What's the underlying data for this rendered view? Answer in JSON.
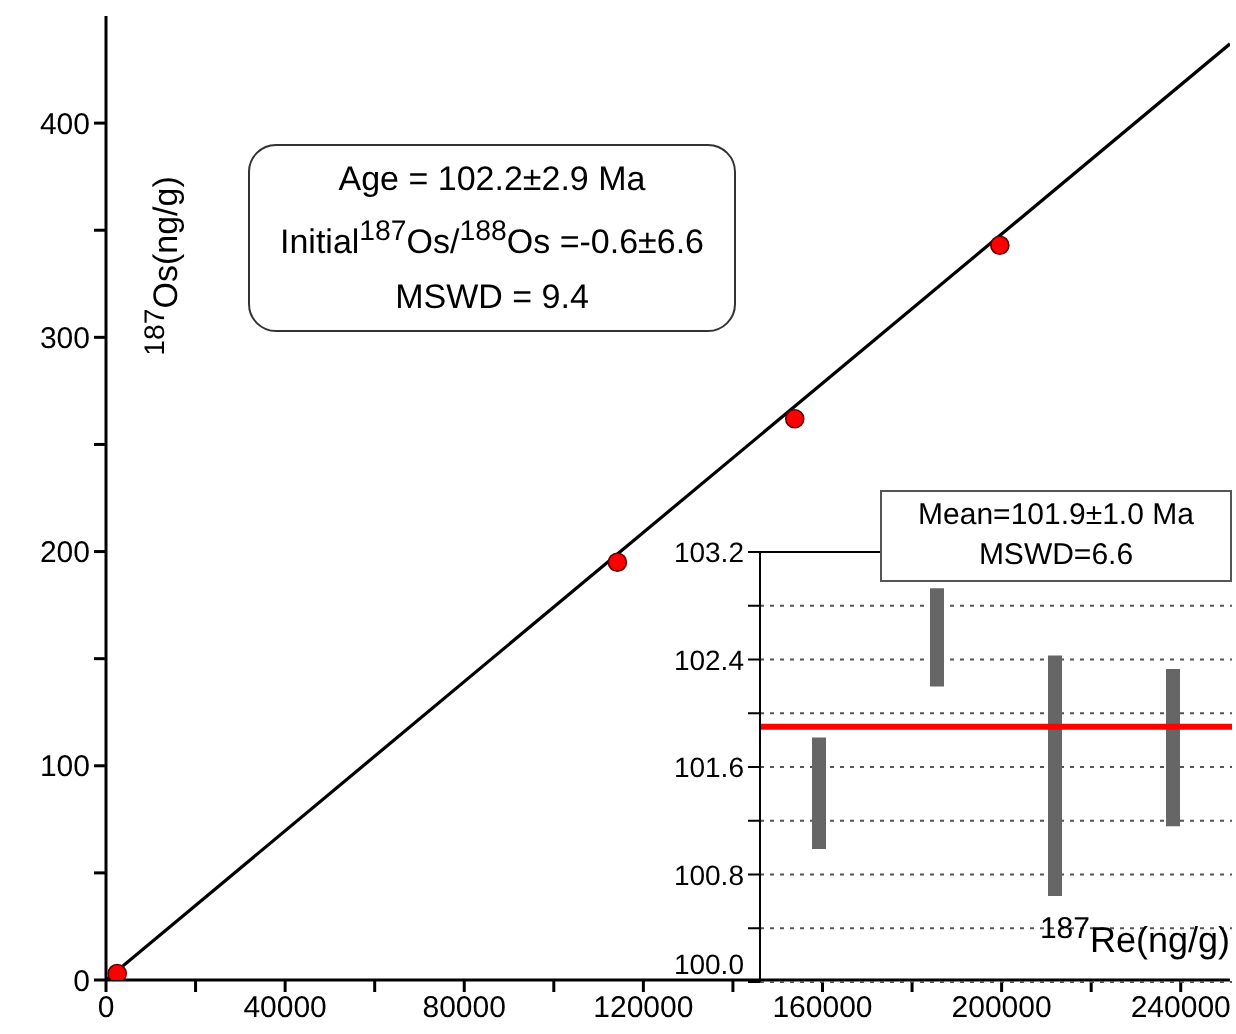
{
  "chart_data": [
    {
      "type": "scatter",
      "xlabel": "$^{187}$Re(ng/g)",
      "ylabel": "$^{187}$Os(ng/g)",
      "annotations": [
        "Age = 102.2±2.9 Ma",
        "Initial$^{187}$Os/$^{188}$Os =-0.6±6.6",
        "MSWD = 9.4"
      ],
      "xlim": [
        0,
        251000
      ],
      "ylim": [
        0,
        450
      ],
      "xticks": [
        0,
        {
          "value": 20000,
          "label": null
        },
        40000,
        {
          "value": 60000,
          "label": null
        },
        80000,
        {
          "value": 100000,
          "label": null
        },
        120000,
        {
          "value": 140000,
          "label": null
        },
        160000,
        {
          "value": 180000,
          "label": null
        },
        200000,
        {
          "value": 220000,
          "label": null
        },
        240000
      ],
      "yticks": [
        0,
        {
          "value": 50,
          "label": null
        },
        100,
        {
          "value": 150,
          "label": null
        },
        200,
        {
          "value": 250,
          "label": null
        },
        300,
        {
          "value": 350,
          "label": null
        },
        400
      ],
      "marker": "circle",
      "series": [
        {
          "color": "#ff0000",
          "x": [
            2500,
            114200,
            153800,
            199600
          ],
          "values": [
            3,
            195,
            262,
            343
          ]
        },
        {
          "type": "line",
          "marker": "none",
          "color": "#000000",
          "x": [
            0,
            251000
          ],
          "values": [
            0,
            437
          ]
        }
      ]
    },
    {
      "type": "bar",
      "categories": [
        null,
        null,
        null,
        null
      ],
      "values": [
        0.83,
        0.73,
        1.79,
        1.17
      ],
      "base": [
        100.99,
        102.2,
        100.64,
        101.16
      ],
      "color": "#666666",
      "ylim": [
        100,
        103.2
      ],
      "yticks": [
        {
          "value": 100,
          "label": "100.0"
        },
        {
          "value": 100.4,
          "label": null
        },
        {
          "value": 100.8,
          "label": "100.8"
        },
        {
          "value": 101.2,
          "label": null
        },
        {
          "value": 101.6,
          "label": "101.6"
        },
        {
          "value": 102,
          "label": null
        },
        {
          "value": 102.4,
          "label": "102.4"
        },
        {
          "value": 102.8,
          "label": null
        },
        {
          "value": 103.2,
          "label": "103.2"
        }
      ],
      "grid": "y",
      "tick_labels": "y",
      "ref_lines": [
        {
          "axis": "y",
          "value": 101.9,
          "color": "#ff0000"
        }
      ],
      "annotations": [
        "Mean=101.9±1.0 Ma",
        "MSWD=6.6"
      ]
    }
  ]
}
